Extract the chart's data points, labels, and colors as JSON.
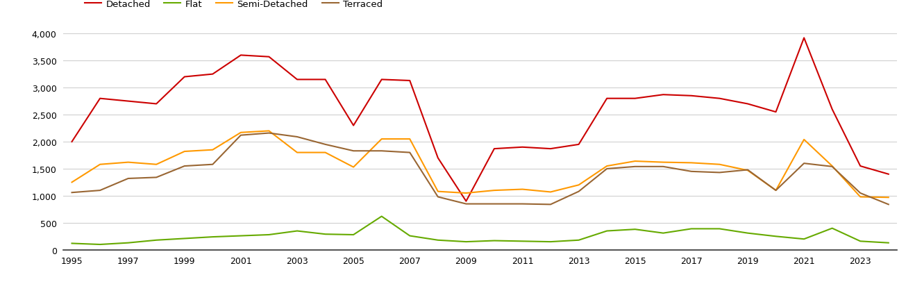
{
  "years": [
    1995,
    1996,
    1997,
    1998,
    1999,
    2000,
    2001,
    2002,
    2003,
    2004,
    2005,
    2006,
    2007,
    2008,
    2009,
    2010,
    2011,
    2012,
    2013,
    2014,
    2015,
    2016,
    2017,
    2018,
    2019,
    2020,
    2021,
    2022,
    2023,
    2024
  ],
  "detached": [
    2000,
    2800,
    2750,
    2700,
    3200,
    3250,
    3600,
    3570,
    3150,
    3150,
    2300,
    3150,
    3130,
    1700,
    900,
    1870,
    1900,
    1870,
    1950,
    2800,
    2800,
    2870,
    2850,
    2800,
    2700,
    2550,
    3920,
    2600,
    1550,
    1400
  ],
  "flat": [
    120,
    100,
    130,
    180,
    210,
    240,
    260,
    280,
    350,
    290,
    280,
    620,
    260,
    180,
    150,
    170,
    160,
    150,
    180,
    350,
    380,
    310,
    390,
    390,
    310,
    250,
    200,
    400,
    160,
    130
  ],
  "semi_detached": [
    1250,
    1580,
    1620,
    1580,
    1820,
    1850,
    2170,
    2200,
    1800,
    1800,
    1530,
    2050,
    2050,
    1080,
    1050,
    1100,
    1120,
    1070,
    1200,
    1550,
    1640,
    1620,
    1610,
    1580,
    1470,
    1100,
    2040,
    1550,
    980,
    970
  ],
  "terraced": [
    1060,
    1100,
    1320,
    1340,
    1550,
    1580,
    2120,
    2160,
    2090,
    1950,
    1830,
    1830,
    1800,
    980,
    850,
    850,
    850,
    840,
    1080,
    1500,
    1540,
    1540,
    1450,
    1430,
    1480,
    1100,
    1600,
    1540,
    1050,
    840
  ],
  "colors": {
    "detached": "#cc0000",
    "flat": "#66aa00",
    "semi_detached": "#ff9900",
    "terraced": "#996633"
  },
  "ylim": [
    0,
    4000
  ],
  "yticks": [
    0,
    500,
    1000,
    1500,
    2000,
    2500,
    3000,
    3500,
    4000
  ],
  "legend_labels": [
    "Detached",
    "Flat",
    "Semi-Detached",
    "Terraced"
  ],
  "background_color": "#ffffff",
  "grid_color": "#d0d0d0"
}
